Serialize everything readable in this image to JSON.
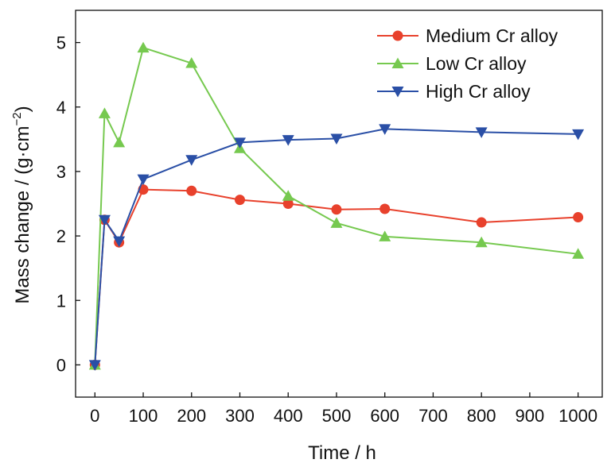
{
  "chart_data": {
    "type": "line",
    "xlabel": "Time / h",
    "ylabel_main": "Mass change / (g·cm",
    "ylabel_sup": "−2",
    "ylabel_close": ")",
    "x_ticks": [
      "0",
      "100",
      "200",
      "300",
      "400",
      "500",
      "600",
      "700",
      "800",
      "900",
      "1000"
    ],
    "y_ticks": [
      "0",
      "1",
      "2",
      "3",
      "4",
      "5"
    ],
    "xlim": [
      -40,
      1050
    ],
    "ylim": [
      -0.5,
      5.5
    ],
    "x_tick_values": [
      0,
      100,
      200,
      300,
      400,
      500,
      600,
      700,
      800,
      900,
      1000
    ],
    "y_tick_values": [
      0,
      1,
      2,
      3,
      4,
      5
    ],
    "legend_position": "top-right",
    "series": [
      {
        "name": "Medium Cr alloy",
        "color": "#e8412c",
        "marker": "circle",
        "x": [
          0,
          20,
          50,
          100,
          200,
          300,
          400,
          500,
          600,
          800,
          1000
        ],
        "y": [
          0,
          2.25,
          1.9,
          2.72,
          2.7,
          2.56,
          2.5,
          2.41,
          2.42,
          2.21,
          2.29
        ]
      },
      {
        "name": "Low Cr alloy",
        "color": "#76c94f",
        "marker": "triangle-up",
        "x": [
          0,
          20,
          50,
          100,
          200,
          300,
          400,
          500,
          600,
          800,
          1000
        ],
        "y": [
          0,
          3.9,
          3.45,
          4.92,
          4.68,
          3.36,
          2.62,
          2.2,
          1.99,
          1.9,
          1.72
        ]
      },
      {
        "name": "High Cr alloy",
        "color": "#2a4fa6",
        "marker": "triangle-down",
        "x": [
          0,
          20,
          50,
          100,
          200,
          300,
          400,
          500,
          600,
          800,
          1000
        ],
        "y": [
          0,
          2.25,
          1.92,
          2.88,
          3.18,
          3.45,
          3.49,
          3.51,
          3.66,
          3.61,
          3.58
        ]
      }
    ]
  }
}
